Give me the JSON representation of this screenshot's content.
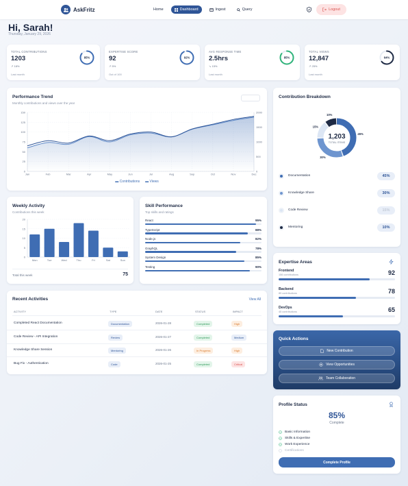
{
  "nav": {
    "brand": "AskFritz",
    "links": [
      {
        "label": "Home"
      },
      {
        "label": "Dashboard"
      },
      {
        "label": "Ingest"
      },
      {
        "label": "Query"
      }
    ],
    "logout": "Logout"
  },
  "header": {
    "greeting": "Hi, Sarah!",
    "date": "Thursday, January 29, 2026"
  },
  "stats": [
    {
      "label": "TOTAL CONTRIBUTIONS",
      "value": "1203",
      "change": "↗ 18%",
      "sub": "Last month",
      "ring": "85%",
      "pct": 0.85,
      "color": "#3f6db3"
    },
    {
      "label": "EXPERTISE SCORE",
      "value": "92",
      "change": "↗ 5%",
      "sub": "Out of 100",
      "ring": "92%",
      "pct": 0.92,
      "color": "#3f6db3"
    },
    {
      "label": "AVG RESPONSE TIME",
      "value": "2.5hrs",
      "change": "↘ 15%",
      "sub": "Last month",
      "ring": "85%",
      "pct": 0.85,
      "color": "#2fb37a"
    },
    {
      "label": "TOTAL VIEWS",
      "value": "12,847",
      "change": "↗ 25%",
      "sub": "Last month",
      "ring": "64%",
      "pct": 0.64,
      "color": "#1e2a44"
    }
  ],
  "trend": {
    "title": "Performance Trend",
    "subtitle": "Monthly contributions and views over the year",
    "legend": [
      "Contributions",
      "Views"
    ]
  },
  "chart_data": [
    {
      "type": "line",
      "title": "Performance Trend",
      "x": [
        "Jan",
        "Feb",
        "Mar",
        "Apr",
        "May",
        "Jun",
        "Jul",
        "Aug",
        "Sep",
        "Oct",
        "Nov",
        "Dec"
      ],
      "ylim": [
        0,
        150
      ],
      "y2lim": [
        0,
        2000
      ],
      "yticks": [
        0,
        25,
        50,
        75,
        100,
        125,
        150
      ],
      "y2ticks": [
        0,
        500,
        1000,
        1500,
        2000
      ],
      "series": [
        {
          "name": "Contributions",
          "values": [
            65,
            78,
            72,
            90,
            78,
            95,
            100,
            88,
            108,
            120,
            132,
            140
          ]
        },
        {
          "name": "Views",
          "values": [
            800,
            980,
            920,
            1180,
            1000,
            1240,
            1300,
            1170,
            1430,
            1580,
            1730,
            1840
          ]
        }
      ]
    },
    {
      "type": "bar",
      "title": "Weekly Activity",
      "categories": [
        "Mon",
        "Tue",
        "Wed",
        "Thu",
        "Fri",
        "Sat",
        "Sun"
      ],
      "values": [
        12,
        15,
        8,
        18,
        14,
        5,
        3
      ],
      "ylim": [
        0,
        20
      ],
      "yticks": [
        0,
        5,
        10,
        15,
        20
      ]
    },
    {
      "type": "pie",
      "title": "Contribution Breakdown",
      "slices": [
        {
          "name": "Documentation",
          "value": 45
        },
        {
          "name": "Knowledge Share",
          "value": 30
        },
        {
          "name": "Code Review",
          "value": 15
        },
        {
          "name": "Mentoring",
          "value": 10
        }
      ]
    }
  ],
  "weekly": {
    "title": "Weekly Activity",
    "subtitle": "Contributions this week",
    "total_label": "Total this week",
    "total": "75"
  },
  "skills": {
    "title": "Skill Performance",
    "subtitle": "Top skills and ratings",
    "items": [
      {
        "name": "React",
        "pct": "95%",
        "v": 0.95
      },
      {
        "name": "TypeScript",
        "pct": "88%",
        "v": 0.88
      },
      {
        "name": "Node.js",
        "pct": "82%",
        "v": 0.82
      },
      {
        "name": "GraphQL",
        "pct": "78%",
        "v": 0.78
      },
      {
        "name": "System Design",
        "pct": "85%",
        "v": 0.85
      },
      {
        "name": "Testing",
        "pct": "90%",
        "v": 0.9
      }
    ]
  },
  "activities": {
    "title": "Recent Activities",
    "view_all": "View All",
    "headers": [
      "ACTIVITY",
      "TYPE",
      "DATE",
      "STATUS",
      "IMPACT"
    ],
    "rows": [
      {
        "activity": "Completed React Documentation",
        "type": "Documentation",
        "date": "2026-01-28",
        "status": "Completed",
        "impact": "High",
        "sc": "t-green",
        "ic": "t-orange"
      },
      {
        "activity": "Code Review - API Integration",
        "type": "Review",
        "date": "2026-01-27",
        "status": "Completed",
        "impact": "Medium",
        "sc": "t-green",
        "ic": "t-doc"
      },
      {
        "activity": "Knowledge Share Session",
        "type": "Mentoring",
        "date": "2026-01-26",
        "status": "In Progress",
        "impact": "High",
        "sc": "t-orange",
        "ic": "t-orange"
      },
      {
        "activity": "Bug Fix - Authentication",
        "type": "Code",
        "date": "2026-01-25",
        "status": "Completed",
        "impact": "Critical",
        "sc": "t-green",
        "ic": "t-red"
      }
    ]
  },
  "breakdown": {
    "title": "Contribution Breakdown",
    "total": "1,203",
    "total_label": "TOTAL ITEMS",
    "items": [
      {
        "name": "Documentation",
        "pct": "45%",
        "color": "#3f6db3"
      },
      {
        "name": "Knowledge Share",
        "pct": "30%",
        "color": "#6e95cf"
      },
      {
        "name": "Code Review",
        "pct": "15%",
        "color": "#dce6f4"
      },
      {
        "name": "Mentoring",
        "pct": "10%",
        "color": "#1e2a44"
      }
    ],
    "labels": [
      "45%",
      "30%",
      "15%",
      "10%"
    ]
  },
  "expertise": {
    "title": "Expertise Areas",
    "items": [
      {
        "name": "Frontend",
        "sub": "156 contributions",
        "score": "92",
        "v": 0.92
      },
      {
        "name": "Backend",
        "sub": "89 contributions",
        "score": "78",
        "v": 0.78
      },
      {
        "name": "DevOps",
        "sub": "45 contributions",
        "score": "65",
        "v": 0.65
      }
    ]
  },
  "quick": {
    "title": "Quick Actions",
    "buttons": [
      "New Contribution",
      "View Opportunities",
      "Team Collaboration"
    ]
  },
  "profile": {
    "title": "Profile Status",
    "pct": "85%",
    "label": "Complete",
    "checks": [
      {
        "label": "Basic Information",
        "done": true
      },
      {
        "label": "Skills & Expertise",
        "done": true
      },
      {
        "label": "Work Experience",
        "done": true
      },
      {
        "label": "Certifications",
        "done": false
      }
    ],
    "button": "Complete Profile"
  }
}
